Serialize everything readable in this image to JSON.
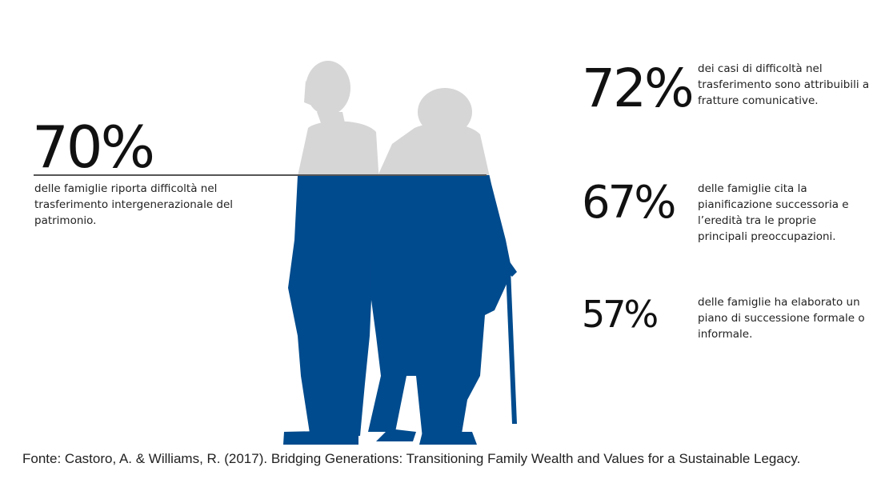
{
  "stats": {
    "main": {
      "value": "70%",
      "text": "delle famiglie riporta difficoltà nel trasferimento intergenerazionale del patrimonio."
    },
    "items": [
      {
        "value": "72%",
        "text": "dei casi di difficoltà nel trasferimento sono attribuibili a fratture comunicative."
      },
      {
        "value": "67%",
        "text": "delle famiglie cita la pianificazione successoria e l’eredità tra le proprie principali preoccupazioni."
      },
      {
        "value": "57%",
        "text": "delle famiglie ha elaborato un piano di successione formale o informale."
      }
    ]
  },
  "fill_level": 0.7,
  "colors": {
    "fill": "#004b8d",
    "empty": "#d6d6d6"
  },
  "source": "Fonte: Castoro, A. & Williams, R. (2017). Bridging Generations: Transitioning Family Wealth and Values for a Sustainable Legacy."
}
